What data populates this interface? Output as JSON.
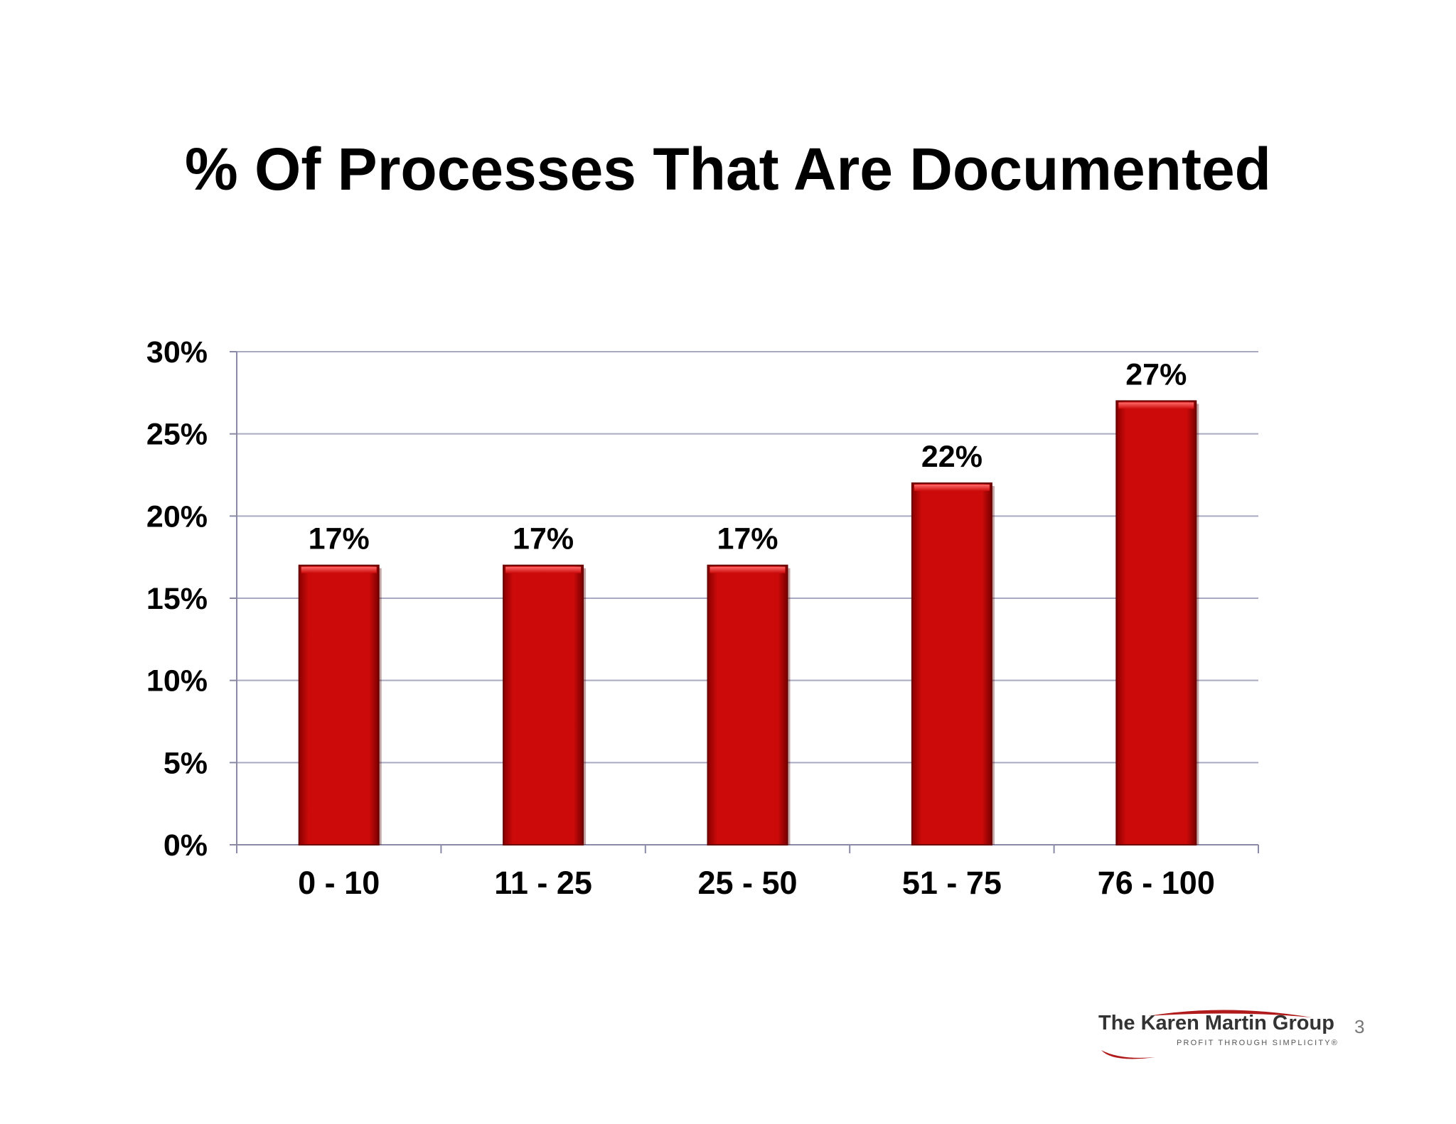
{
  "chart_data": {
    "type": "bar",
    "title": "% Of Processes That Are Documented",
    "categories": [
      "0 - 10",
      "11 - 25",
      "25 - 50",
      "51 - 75",
      "76 - 100"
    ],
    "values": [
      17,
      17,
      17,
      22,
      27
    ],
    "data_labels": [
      "17%",
      "17%",
      "17%",
      "22%",
      "27%"
    ],
    "ylim": [
      0,
      30
    ],
    "yticks": [
      0,
      5,
      10,
      15,
      20,
      25,
      30
    ],
    "ytick_labels": [
      "0%",
      "5%",
      "10%",
      "15%",
      "20%",
      "25%",
      "30%"
    ],
    "grid": true,
    "bar_color": "#cc0a0a"
  },
  "footer": {
    "logo_name": "The Karen Martin Group",
    "logo_tagline": "PROFIT THROUGH SIMPLICITY®",
    "page_number": "3"
  }
}
